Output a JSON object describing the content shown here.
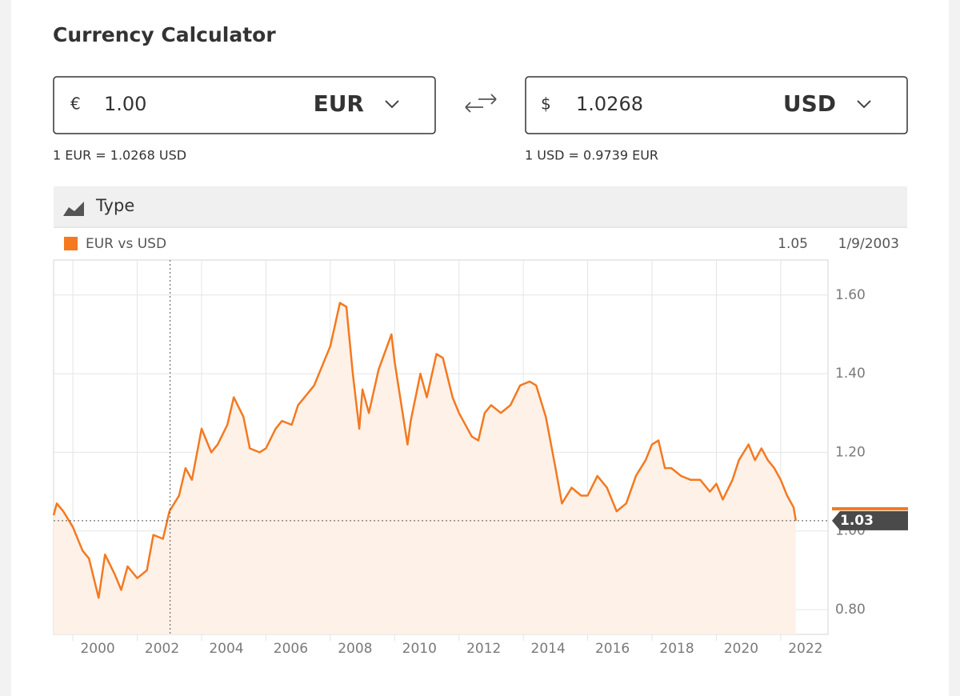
{
  "header": {
    "title": "Currency Calculator"
  },
  "converter": {
    "from": {
      "symbol": "€",
      "amount": "1.00",
      "currency": "EUR",
      "rate": "1 EUR = 1.0268 USD"
    },
    "to": {
      "symbol": "$",
      "amount": "1.0268",
      "currency": "USD",
      "rate": "1 USD = 0.9739 EUR"
    }
  },
  "toolbar": {
    "label": "Type"
  },
  "chart_data": {
    "type": "area",
    "series": [
      {
        "name": "EUR vs USD",
        "color": "#f47920",
        "fill": "#fdf1e8",
        "x": [
          1999.4,
          1999.5,
          1999.7,
          2000.0,
          2000.3,
          2000.5,
          2000.8,
          2001.0,
          2001.3,
          2001.5,
          2001.7,
          2002.0,
          2002.3,
          2002.5,
          2002.8,
          2003.0,
          2003.3,
          2003.5,
          2003.7,
          2004.0,
          2004.3,
          2004.5,
          2004.8,
          2005.0,
          2005.3,
          2005.5,
          2005.8,
          2006.0,
          2006.3,
          2006.5,
          2006.8,
          2007.0,
          2007.3,
          2007.5,
          2007.8,
          2008.0,
          2008.3,
          2008.5,
          2008.7,
          2008.9,
          2009.0,
          2009.2,
          2009.5,
          2009.9,
          2010.0,
          2010.4,
          2010.5,
          2010.8,
          2011.0,
          2011.3,
          2011.5,
          2011.8,
          2012.0,
          2012.4,
          2012.6,
          2012.8,
          2013.0,
          2013.3,
          2013.6,
          2013.9,
          2014.2,
          2014.4,
          2014.7,
          2015.0,
          2015.2,
          2015.5,
          2015.8,
          2016.0,
          2016.3,
          2016.6,
          2016.9,
          2017.2,
          2017.5,
          2017.8,
          2018.0,
          2018.2,
          2018.4,
          2018.6,
          2018.9,
          2019.2,
          2019.5,
          2019.8,
          2020.0,
          2020.2,
          2020.5,
          2020.7,
          2021.0,
          2021.2,
          2021.4,
          2021.6,
          2021.8,
          2022.0,
          2022.2,
          2022.4,
          2022.47
        ],
        "values": [
          1.04,
          1.07,
          1.05,
          1.01,
          0.95,
          0.93,
          0.83,
          0.94,
          0.89,
          0.85,
          0.91,
          0.88,
          0.9,
          0.99,
          0.98,
          1.05,
          1.09,
          1.16,
          1.13,
          1.26,
          1.2,
          1.22,
          1.27,
          1.34,
          1.29,
          1.21,
          1.2,
          1.21,
          1.26,
          1.28,
          1.27,
          1.32,
          1.35,
          1.37,
          1.43,
          1.47,
          1.58,
          1.57,
          1.4,
          1.26,
          1.36,
          1.3,
          1.41,
          1.5,
          1.43,
          1.22,
          1.28,
          1.4,
          1.34,
          1.45,
          1.44,
          1.34,
          1.3,
          1.24,
          1.23,
          1.3,
          1.32,
          1.3,
          1.32,
          1.37,
          1.38,
          1.37,
          1.29,
          1.16,
          1.07,
          1.11,
          1.09,
          1.09,
          1.14,
          1.11,
          1.05,
          1.07,
          1.14,
          1.18,
          1.22,
          1.23,
          1.16,
          1.16,
          1.14,
          1.13,
          1.13,
          1.1,
          1.12,
          1.08,
          1.13,
          1.18,
          1.22,
          1.18,
          1.21,
          1.18,
          1.16,
          1.13,
          1.09,
          1.06,
          1.026
        ]
      }
    ],
    "last_value_label": "1.03",
    "crosshair": {
      "date": "1/9/2003",
      "value": 1.05
    },
    "xlim": [
      1999.4,
      2023.47
    ],
    "xticks": [
      2000,
      2002,
      2004,
      2006,
      2008,
      2010,
      2012,
      2014,
      2016,
      2018,
      2020,
      2022
    ],
    "ylim": [
      0.737,
      1.689
    ],
    "yticks": [
      {
        "value": 0.8,
        "label": "0.80"
      },
      {
        "value": 1.0,
        "label": "1.00"
      },
      {
        "value": 1.2,
        "label": "1.20"
      },
      {
        "value": 1.4,
        "label": "1.40"
      },
      {
        "value": 1.6,
        "label": "1.60"
      }
    ],
    "grid": true
  }
}
